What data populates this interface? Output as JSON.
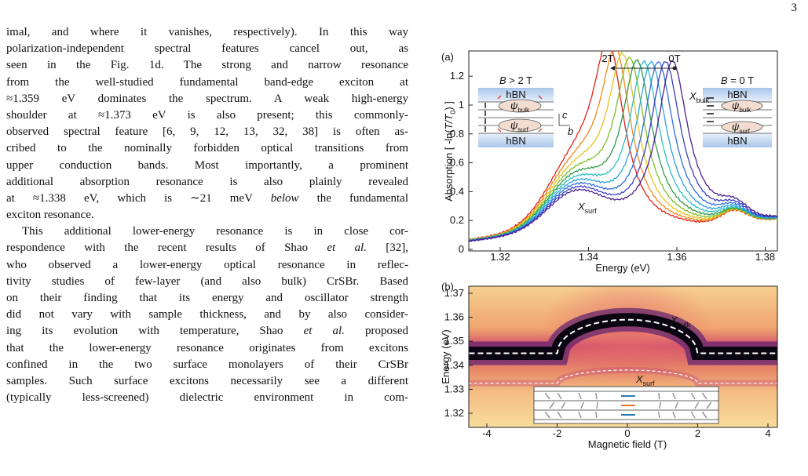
{
  "page_number": "3",
  "paragraphs": [
    {
      "lines": [
        [
          "imal, and where it vanishes, respectively). In this way"
        ],
        [
          "polarization-independent spectral features cancel out, as"
        ],
        [
          "seen in the Fig. 1d. The strong and narrow resonance"
        ],
        [
          "from the well-studied fundamental band-edge exciton at"
        ],
        [
          "≈1.359 eV dominates the spectrum. A weak high-energy"
        ],
        [
          "shoulder at ≈1.373 eV is also present; this commonly-"
        ],
        [
          "observed spectral feature [6, 9, 12, 13, 32, 38] is often as-"
        ],
        [
          "cribed to the nominally forbidden optical transitions from"
        ],
        [
          "upper conduction bands. Most importantly, a prominent"
        ],
        [
          "additional absorption resonance is also plainly revealed"
        ],
        [
          "at ≈1.338 eV, which is ∼21 meV ",
          "below",
          " the fundamental"
        ],
        [
          "exciton resonance."
        ]
      ]
    },
    {
      "lines": [
        [
          "This additional lower-energy resonance is in close cor-"
        ],
        [
          "respondence with the recent results of Shao ",
          "et al.",
          " [32],"
        ],
        [
          "who observed a lower-energy optical resonance in reflec-"
        ],
        [
          "tivity studies of few-layer (and also bulk) CrSBr. Based"
        ],
        [
          "on their finding that its energy and oscillator strength"
        ],
        [
          "did not vary with sample thickness, and by also consider-"
        ],
        [
          "ing its evolution with temperature, Shao ",
          "et al.",
          " proposed"
        ],
        [
          "that the lower-energy resonance originates from excitons"
        ],
        [
          "confined in the two surface monolayers of their CrSBr"
        ],
        [
          "samples. Such surface excitons necessarily see a different"
        ],
        [
          "(typically less-screened) dielectric environment in com-"
        ]
      ]
    }
  ],
  "figure": {
    "panel_a": {
      "label": "(a)",
      "xticks": [
        "1.32",
        "1.34",
        "1.36",
        "1.38"
      ],
      "yticks": [
        "0",
        "0.2",
        "0.4",
        "0.6",
        "0.8",
        "1",
        "1.2"
      ],
      "xlabel": "Energy (eV)",
      "ylabel_parts": [
        "Absorption [ -ln(",
        "T/T",
        "0",
        ") ]"
      ],
      "field_high": "2T",
      "field_zero": "0T",
      "x_bulk": {
        "main": "X",
        "sub": "bulk"
      },
      "x_surf": {
        "main": "X",
        "sub": "surf"
      },
      "left_inset": {
        "title_parts": [
          "B",
          " > 2 T"
        ],
        "top": "hBN",
        "bottom": "hBN",
        "psi_bulk": {
          "main": "ψ",
          "sub": "bulk"
        },
        "psi_surf": {
          "main": "ψ",
          "sub": "surf"
        },
        "axis_c": "c",
        "axis_b": "b"
      },
      "right_inset": {
        "title_parts": [
          "B",
          " = 0 T"
        ],
        "top": "hBN",
        "bottom": "hBN",
        "psi_bulk": {
          "main": "ψ",
          "sub": "bulk"
        },
        "psi_surf": {
          "main": "ψ",
          "sub": "surf"
        }
      }
    },
    "panel_b": {
      "label": "(b)",
      "xticks": [
        "-4",
        "-2",
        "0",
        "2",
        "4"
      ],
      "yticks": [
        "1.32",
        "1.33",
        "1.34",
        "1.35",
        "1.36",
        "1.37"
      ],
      "xlabel": "Magnetic field (T)",
      "ylabel": "Energy (eV)",
      "x_bulk": {
        "main": "X",
        "sub": "bulk"
      },
      "x_surf": {
        "main": "X",
        "sub": "surf"
      }
    }
  }
}
